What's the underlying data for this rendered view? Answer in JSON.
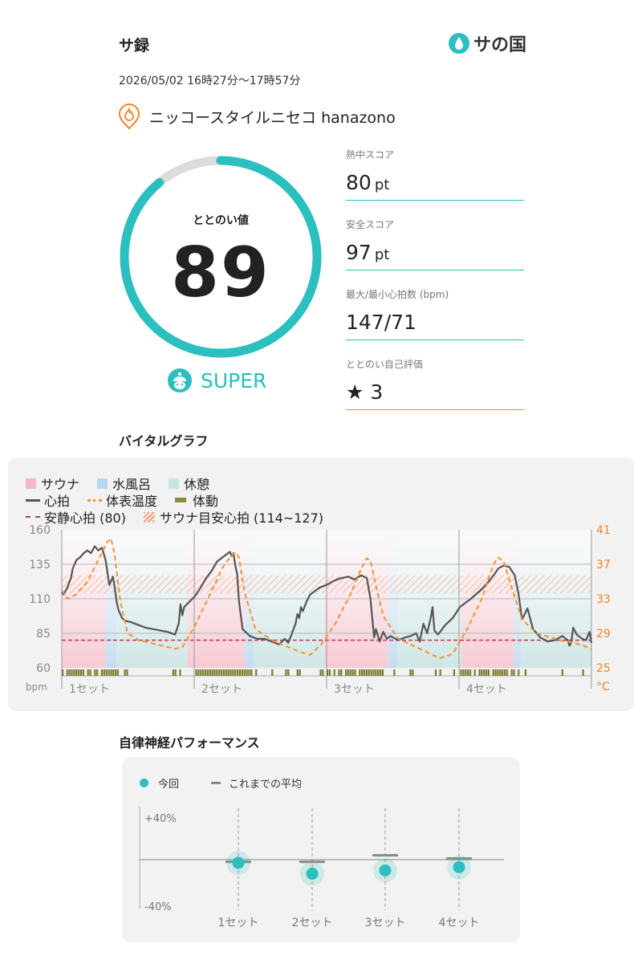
{
  "header": {
    "title": "サ録",
    "logo_text": "サの国",
    "datetime": "2026/05/02 16時27分〜17時57分"
  },
  "facility": {
    "icon": "sauna-flame-pin-icon",
    "name": "ニッコースタイルニセコ hanazono"
  },
  "totonoi": {
    "label": "ととのい値",
    "value": "89",
    "progress": 0.89,
    "rank_icon": "bell-hat-mascot-icon",
    "rank": "SUPER"
  },
  "metrics": [
    {
      "label": "熱中スコア",
      "value": "80",
      "unit": "pt"
    },
    {
      "label": "安全スコア",
      "value": "97",
      "unit": "pt"
    },
    {
      "label": "最大/最小心拍数 (bpm)",
      "value": "147/71",
      "unit": ""
    },
    {
      "label": "ととのい自己評価",
      "value": "★ 3",
      "unit": ""
    }
  ],
  "vital_graph": {
    "title": "バイタルグラフ",
    "legend": {
      "sauna": "サウナ",
      "cold_bath": "水風呂",
      "rest": "休憩",
      "heart_rate": "心拍",
      "skin_temp": "体表温度",
      "body_motion": "体動",
      "resting_hr": "安静心拍 (80)",
      "target_hr": "サウナ目安心拍 (114~127)"
    },
    "left_unit": "bpm",
    "right_unit": "°C",
    "left_ticks": [
      "160",
      "135",
      "110",
      "85",
      "60"
    ],
    "right_ticks": [
      "41",
      "37",
      "33",
      "29",
      "25"
    ],
    "set_labels": [
      "1セット",
      "2セット",
      "3セット",
      "4セット"
    ],
    "colors": {
      "sauna": "#f7c9d3",
      "cold_bath": "#c6dcf3",
      "rest": "#cfe6e6",
      "heart_rate": "#555555",
      "skin_temp": "#f5922e",
      "resting": "#c0394a",
      "motion": "#7a7a2a"
    }
  },
  "chart_data": [
    {
      "type": "line",
      "title": "バイタルグラフ",
      "ylabel": "bpm",
      "ylim": [
        60,
        160
      ],
      "y2label": "°C",
      "y2lim": [
        25,
        41
      ],
      "x_segments": [
        "1セット",
        "2セット",
        "3セット",
        "4セット"
      ],
      "resting_hr": 80,
      "target_hr_range": [
        114,
        127
      ],
      "series": [
        {
          "name": "心拍",
          "axis": "left",
          "x": [
            0,
            1,
            3,
            5,
            6,
            8,
            10,
            12,
            14,
            16,
            18,
            20,
            22,
            24,
            26,
            28,
            29,
            30,
            31,
            33,
            35,
            38,
            42,
            46,
            50,
            54,
            58,
            62,
            64,
            65,
            66,
            67,
            70,
            73,
            76,
            79,
            82,
            85,
            88,
            90,
            92,
            93,
            94,
            95,
            96,
            97,
            99,
            103,
            107,
            111,
            115,
            119,
            122,
            124,
            126,
            128,
            129,
            130,
            131,
            132,
            134,
            136,
            138,
            141,
            145,
            149,
            153,
            157,
            160,
            164,
            167,
            169,
            170,
            171,
            172,
            174,
            176,
            178,
            180,
            184,
            188,
            191,
            194,
            196,
            198,
            200,
            202,
            203,
            204,
            206,
            210,
            214,
            218,
            224,
            230,
            234,
            237,
            239,
            242,
            245,
            248,
            250,
            252,
            255,
            258,
            262,
            266,
            270,
            274,
            277,
            278,
            279,
            280,
            282,
            285,
            287,
            289,
            290
          ],
          "values": [
            115,
            113,
            118,
            125,
            132,
            138,
            140,
            143,
            145,
            143,
            148,
            145,
            147,
            138,
            120,
            126,
            118,
            108,
            102,
            96,
            94,
            93,
            91,
            89,
            88,
            87,
            86,
            84,
            92,
            106,
            98,
            104,
            108,
            112,
            118,
            125,
            130,
            137,
            140,
            142,
            144,
            141,
            143,
            134,
            128,
            108,
            88,
            83,
            81,
            81,
            79,
            77,
            81,
            78,
            85,
            92,
            99,
            96,
            104,
            101,
            108,
            113,
            115,
            118,
            120,
            123,
            125,
            126,
            124,
            127,
            125,
            110,
            96,
            82,
            88,
            79,
            86,
            81,
            83,
            80,
            82,
            83,
            85,
            79,
            92,
            85,
            96,
            104,
            87,
            84,
            91,
            96,
            104,
            110,
            117,
            123,
            128,
            132,
            134,
            133,
            127,
            114,
            95,
            103,
            88,
            82,
            79,
            80,
            83,
            80,
            76,
            79,
            89,
            84,
            81,
            80,
            86,
            78
          ]
        },
        {
          "name": "体表温度",
          "axis": "right",
          "x": [
            0,
            3,
            8,
            14,
            20,
            25,
            27,
            29,
            32,
            36,
            42,
            50,
            58,
            62,
            66,
            72,
            80,
            88,
            92,
            95,
            97,
            100,
            106,
            115,
            124,
            131,
            136,
            142,
            150,
            158,
            164,
            167,
            169,
            172,
            176,
            184,
            194,
            202,
            207,
            214,
            222,
            230,
            234,
            237,
            239,
            242,
            246,
            252,
            260,
            268,
            275,
            280,
            285,
            290
          ],
          "values": [
            34,
            33,
            33.5,
            35,
            37.5,
            39.6,
            40,
            38,
            32.8,
            29,
            28.2,
            27.8,
            27.4,
            27.2,
            27.4,
            29.5,
            33,
            36.6,
            37.8,
            38.4,
            37.8,
            33.8,
            29.5,
            28.2,
            27.4,
            26.8,
            26.5,
            27.7,
            30.2,
            33.5,
            36.5,
            37.7,
            37.4,
            34.5,
            31,
            28.4,
            27.4,
            26.6,
            26.1,
            26.6,
            29.5,
            33,
            35.6,
            37.2,
            37.8,
            37.3,
            34.5,
            30.6,
            29,
            28.5,
            28.1,
            27.9,
            27.6,
            27.2
          ]
        }
      ]
    },
    {
      "type": "scatter",
      "title": "自律神経パフォーマンス",
      "categories": [
        "1セット",
        "2セット",
        "3セット",
        "4セット"
      ],
      "ylim": [
        -40,
        40
      ],
      "series": [
        {
          "name": "今回",
          "values": [
            -3,
            -13,
            -10,
            -7
          ]
        },
        {
          "name": "これまでの平均",
          "values": [
            -2,
            -2,
            4,
            1
          ]
        }
      ]
    }
  ],
  "ans_graph": {
    "title": "自律神経パフォーマンス",
    "legend_current": "今回",
    "legend_average": "これまでの平均",
    "y_top": "+40%",
    "y_bottom": "-40%"
  }
}
